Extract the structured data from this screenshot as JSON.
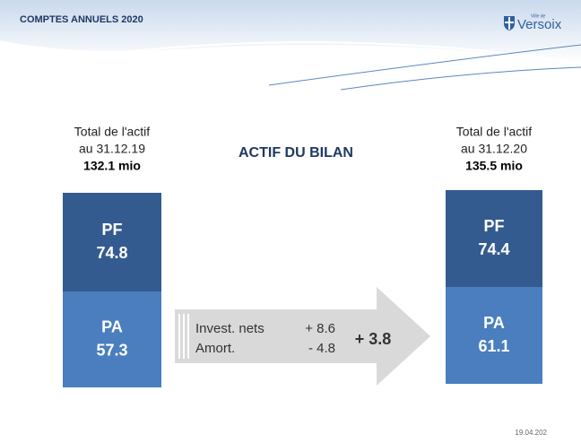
{
  "header": {
    "title": "COMPTES ANNUELS 2020",
    "logo_small": "Ville de",
    "logo": "Versoix"
  },
  "title": "ACTIF DU BILAN",
  "left": {
    "label": "Total de l'actif",
    "date": "au 31.12.19",
    "total": "132.1 mio",
    "boxes": [
      {
        "name": "PF",
        "value": "74.8"
      },
      {
        "name": "PA",
        "value": "57.3"
      }
    ]
  },
  "right": {
    "label": "Total de l'actif",
    "date": "au 31.12.20",
    "total": "135.5 mio",
    "boxes": [
      {
        "name": "PF",
        "value": "74.4"
      },
      {
        "name": "PA",
        "value": "61.1"
      }
    ]
  },
  "arrow": {
    "rows": [
      {
        "label": "Invest. nets",
        "value": "+ 8.6"
      },
      {
        "label": "Amort.",
        "value": "- 4.8"
      }
    ],
    "result": "+ 3.8"
  },
  "footer": {
    "date": "19.04.202"
  }
}
